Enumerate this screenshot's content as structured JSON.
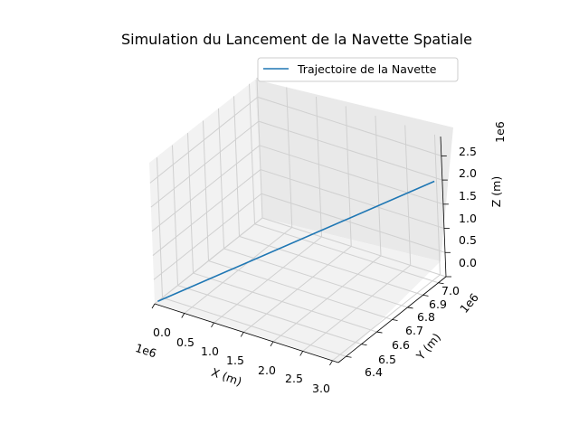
{
  "chart_data": {
    "type": "line",
    "title": "Simulation du Lancement de la Navette Spatiale",
    "xlabel": "X (m)",
    "ylabel": "Y (m)",
    "zlabel": "Z (m)",
    "x_offset_label": "1e6",
    "y_offset_label": "1e6",
    "z_offset_label": "1e6",
    "x_ticks": [
      "0.0",
      "0.5",
      "1.0",
      "1.5",
      "2.0",
      "2.5",
      "3.0"
    ],
    "y_ticks": [
      "6.4",
      "6.5",
      "6.6",
      "6.7",
      "6.8",
      "6.9",
      "7.0"
    ],
    "z_ticks": [
      "0.0",
      "0.5",
      "1.0",
      "1.5",
      "2.0",
      "2.5"
    ],
    "xlim": [
      0,
      3.1
    ],
    "ylim": [
      6.35,
      7.05
    ],
    "zlim": [
      0,
      2.9
    ],
    "grid": true,
    "legend_position": "upper-right",
    "series": [
      {
        "name": "Trajectoire de la Navette",
        "color": "#1f77b4",
        "x": [
          0,
          3.1
        ],
        "y": [
          6.37,
          7.0
        ],
        "z": [
          0,
          2.1
        ]
      }
    ]
  }
}
